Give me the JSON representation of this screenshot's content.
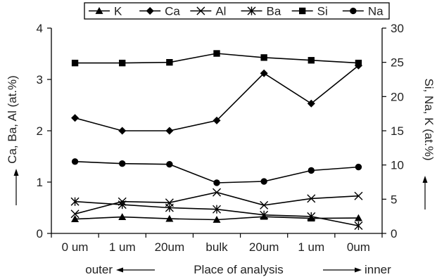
{
  "chart_data": {
    "type": "line",
    "categories": [
      "0 um",
      "1 um",
      "20um",
      "bulk",
      "20um",
      "1 um",
      "0um"
    ],
    "xlabel": {
      "left": "outer",
      "center": "Place of analysis",
      "right": "inner"
    },
    "ylabel_left": "Ca, Ba, Al (at.%)",
    "ylabel_right": "Si, Na, K (at.%)",
    "ylim_left": [
      0,
      4
    ],
    "ylim_right": [
      0,
      30
    ],
    "yticks_left": [
      "0",
      "1",
      "2",
      "3",
      "4"
    ],
    "yticks_right": [
      "0",
      "5",
      "10",
      "15",
      "20",
      "25",
      "30"
    ],
    "legend_position": "top",
    "grid": false,
    "series": [
      {
        "name": "K",
        "axis": "right",
        "marker": "triangle",
        "values": [
          2.1,
          2.4,
          2.15,
          2.0,
          2.45,
          2.2,
          2.25
        ]
      },
      {
        "name": "Ca",
        "axis": "left",
        "marker": "diamond",
        "values": [
          2.25,
          2.0,
          2.0,
          2.2,
          3.12,
          2.53,
          3.27
        ]
      },
      {
        "name": "Al",
        "axis": "left",
        "marker": "x",
        "values": [
          0.38,
          0.62,
          0.6,
          0.8,
          0.55,
          0.68,
          0.73
        ]
      },
      {
        "name": "Ba",
        "axis": "left",
        "marker": "star",
        "values": [
          0.62,
          0.56,
          0.5,
          0.47,
          0.36,
          0.33,
          0.15
        ]
      },
      {
        "name": "Si",
        "axis": "right",
        "marker": "square",
        "values": [
          24.9,
          24.9,
          25.0,
          26.3,
          25.7,
          25.3,
          24.9
        ]
      },
      {
        "name": "Na",
        "axis": "right",
        "marker": "circle",
        "values": [
          10.5,
          10.2,
          10.1,
          7.4,
          7.6,
          9.2,
          9.7
        ]
      }
    ]
  }
}
